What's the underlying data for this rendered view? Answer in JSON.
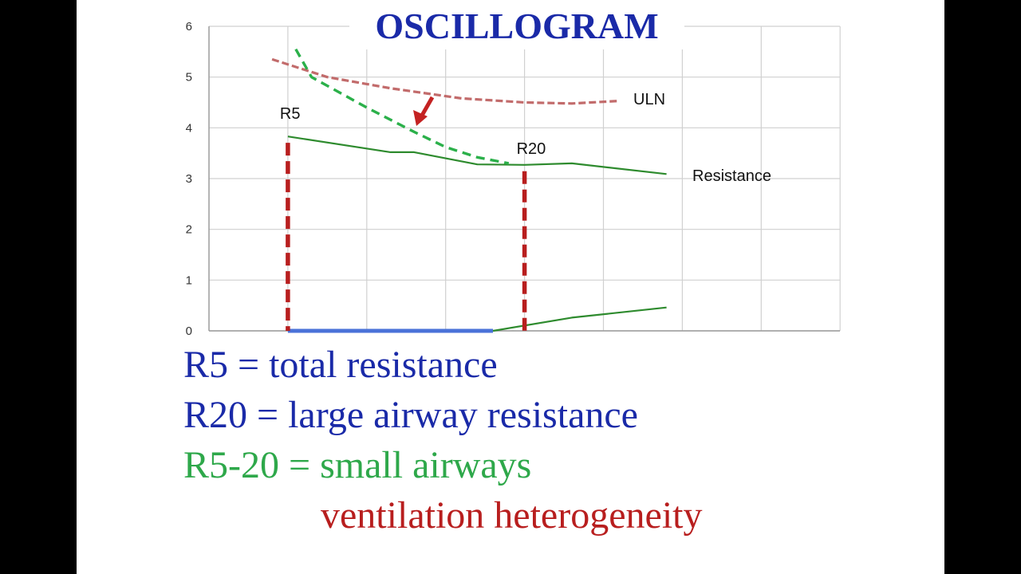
{
  "title": "OSCILLOGRAM",
  "colors": {
    "title": "#1a2aa8",
    "resistance_line": "#2e8b2e",
    "dashed_green": "#2bb04a",
    "uln_line": "#c26b6b",
    "marker_red": "#b81e1e",
    "caption_blue": "#1a2aa8",
    "caption_green": "#2ea84a",
    "caption_red": "#b81e1e"
  },
  "chart_data": {
    "type": "line",
    "title": "OSCILLOGRAM",
    "xlabel": "",
    "ylabel": "",
    "ylim": [
      0,
      6
    ],
    "y_ticks": [
      "0",
      "1",
      "2",
      "3",
      "4",
      "5",
      "6"
    ],
    "grid": true,
    "series": [
      {
        "name": "Resistance",
        "style": "solid",
        "x": [
          1,
          2.3,
          2.6,
          3.4,
          4,
          4.6,
          5.8
        ],
        "values": [
          3.83,
          3.52,
          3.52,
          3.28,
          3.27,
          3.3,
          3.09
        ]
      },
      {
        "name": "ULN",
        "style": "dashed",
        "x": [
          0.8,
          1.5,
          2.3,
          3.2,
          4,
          4.6,
          5.2
        ],
        "values": [
          5.35,
          5.0,
          4.78,
          4.58,
          4.5,
          4.48,
          4.53
        ]
      },
      {
        "name": "",
        "style": "dashed",
        "x": [
          1.1,
          1.3,
          2.0,
          2.6,
          3.0,
          3.4,
          3.8
        ],
        "values": [
          5.55,
          5.0,
          4.4,
          3.92,
          3.62,
          3.42,
          3.3
        ]
      },
      {
        "name": "",
        "style": "solid",
        "x": [
          3.6,
          4.6,
          5.8
        ],
        "values": [
          0,
          0.26,
          0.46
        ]
      }
    ],
    "annotations": [
      {
        "text": "R5",
        "x": 1,
        "y": 3.83
      },
      {
        "text": "R20",
        "x": 4,
        "y": 3.27
      },
      {
        "text": "ULN"
      },
      {
        "text": "Resistance"
      }
    ]
  },
  "captions": {
    "line1": "R5 = total resistance",
    "line2": "R20 = large airway resistance",
    "line3": "R5-20 = small airways",
    "line4": "ventilation heterogeneity"
  }
}
